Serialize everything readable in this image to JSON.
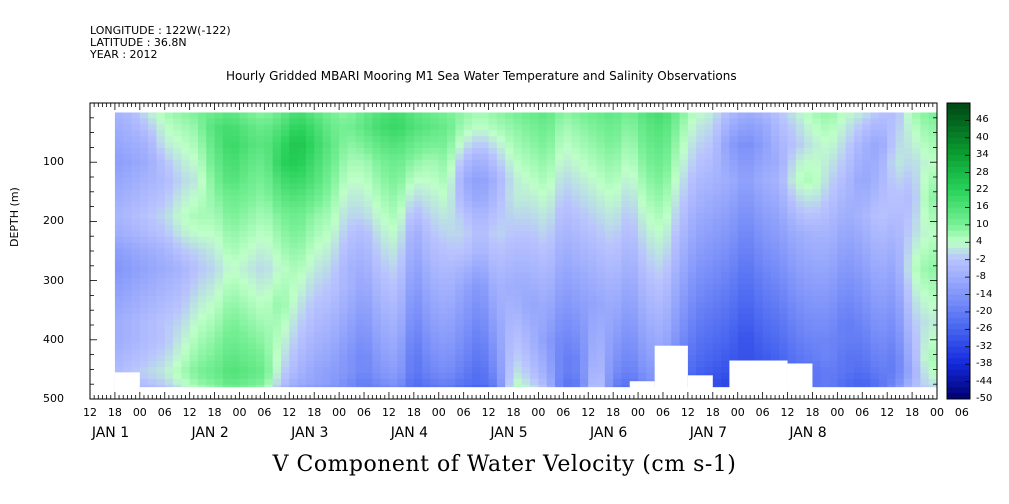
{
  "header": {
    "longitude": "LONGITUDE : 122W(-122)",
    "latitude": "LATITUDE : 36.8N",
    "year": "YEAR : 2012"
  },
  "chart_data": {
    "type": "heatmap",
    "title": "Hourly Gridded MBARI Mooring M1 Sea Water Temperature and Salinity Observations",
    "variable_title": "V Component of Water Velocity (cm s-1)",
    "ylabel": "DEPTH (m)",
    "xlabel": "",
    "y_axis": {
      "range": [
        500,
        0
      ],
      "inverted": true,
      "ticks": [
        100,
        200,
        300,
        400,
        500
      ]
    },
    "x_axis": {
      "range_hours": [
        0,
        204
      ],
      "hour_ticks": [
        "12",
        "18",
        "00",
        "06",
        "12",
        "18",
        "00",
        "06",
        "12",
        "18",
        "00",
        "06",
        "12",
        "18",
        "00",
        "06",
        "12",
        "18",
        "00",
        "06",
        "12",
        "18",
        "00",
        "06",
        "12",
        "18",
        "00",
        "06",
        "12",
        "18",
        "00",
        "06",
        "12",
        "18",
        "00",
        "06"
      ],
      "day_labels": [
        "JAN  1",
        "JAN  2",
        "JAN  3",
        "JAN  4",
        "JAN  5",
        "JAN  6",
        "JAN  7",
        "JAN  8"
      ]
    },
    "colorbar": {
      "levels": [
        46,
        40,
        34,
        28,
        22,
        16,
        10,
        4,
        -2,
        -8,
        -14,
        -20,
        -26,
        -32,
        -38,
        -44,
        -50
      ],
      "min": -50,
      "max": 52
    },
    "time_start": "2011-12-31 12:00",
    "data_columns": [
      {
        "t": 6,
        "v": [
          -6,
          -8,
          -10,
          -12,
          -10,
          -8,
          -6,
          -8,
          -12,
          -14,
          -12,
          -10,
          -8,
          -8,
          -6,
          -4,
          -6,
          -8
        ]
      },
      {
        "t": 10,
        "v": [
          -4,
          -6,
          -8,
          -10,
          -8,
          -6,
          -4,
          -6,
          -10,
          -12,
          -10,
          -8,
          -6,
          -6,
          -4,
          -2,
          -4,
          -6
        ]
      },
      {
        "t": 14,
        "v": [
          2,
          -2,
          -6,
          -8,
          -6,
          -4,
          -2,
          -4,
          -8,
          -10,
          -8,
          -6,
          -4,
          -4,
          -2,
          0,
          -2,
          -4
        ]
      },
      {
        "t": 18,
        "v": [
          6,
          4,
          2,
          -2,
          -4,
          -2,
          0,
          -2,
          -6,
          -8,
          -6,
          -4,
          -2,
          -2,
          0,
          2,
          0,
          -2
        ]
      },
      {
        "t": 22,
        "v": [
          8,
          6,
          4,
          2,
          0,
          2,
          4,
          2,
          -2,
          -6,
          -4,
          -2,
          0,
          2,
          4,
          6,
          4,
          2
        ]
      },
      {
        "t": 26,
        "v": [
          10,
          8,
          6,
          4,
          2,
          4,
          6,
          4,
          0,
          -2,
          0,
          2,
          4,
          6,
          8,
          10,
          8,
          6
        ]
      },
      {
        "t": 30,
        "v": [
          12,
          16,
          14,
          12,
          10,
          8,
          6,
          4,
          2,
          0,
          2,
          4,
          6,
          8,
          10,
          12,
          10,
          8
        ]
      },
      {
        "t": 34,
        "v": [
          14,
          18,
          20,
          18,
          16,
          12,
          10,
          8,
          6,
          4,
          6,
          8,
          10,
          12,
          14,
          16,
          14,
          12
        ]
      },
      {
        "t": 38,
        "v": [
          10,
          14,
          16,
          14,
          12,
          10,
          8,
          6,
          4,
          2,
          4,
          6,
          8,
          10,
          12,
          14,
          12,
          10
        ]
      },
      {
        "t": 42,
        "v": [
          8,
          12,
          14,
          12,
          10,
          8,
          6,
          4,
          2,
          0,
          2,
          4,
          6,
          8,
          10,
          12,
          10,
          8
        ]
      },
      {
        "t": 46,
        "v": [
          12,
          16,
          20,
          22,
          18,
          14,
          10,
          8,
          6,
          4,
          6,
          8,
          6,
          4,
          2,
          0,
          -2,
          -4
        ]
      },
      {
        "t": 50,
        "v": [
          18,
          22,
          26,
          24,
          20,
          16,
          12,
          10,
          8,
          6,
          4,
          2,
          0,
          -2,
          -4,
          -6,
          -8,
          -10
        ]
      },
      {
        "t": 54,
        "v": [
          14,
          18,
          20,
          18,
          16,
          12,
          8,
          6,
          4,
          2,
          0,
          -2,
          -4,
          -6,
          -8,
          -10,
          -10,
          -12
        ]
      },
      {
        "t": 58,
        "v": [
          10,
          12,
          14,
          12,
          10,
          8,
          6,
          4,
          2,
          0,
          -2,
          -4,
          -6,
          -8,
          -10,
          -12,
          -12,
          -14
        ]
      },
      {
        "t": 62,
        "v": [
          8,
          10,
          8,
          6,
          4,
          2,
          0,
          -2,
          -4,
          -6,
          -6,
          -8,
          -10,
          -12,
          -14,
          -14,
          -16,
          -16
        ]
      },
      {
        "t": 66,
        "v": [
          12,
          14,
          10,
          6,
          4,
          2,
          0,
          -4,
          -6,
          -8,
          -10,
          -12,
          -14,
          -16,
          -18,
          -18,
          -20,
          -20
        ]
      },
      {
        "t": 70,
        "v": [
          16,
          18,
          14,
          10,
          8,
          6,
          4,
          2,
          0,
          -2,
          -4,
          -6,
          -8,
          -10,
          -12,
          -14,
          -16,
          -18
        ]
      },
      {
        "t": 74,
        "v": [
          18,
          20,
          16,
          12,
          10,
          8,
          6,
          4,
          2,
          0,
          -2,
          -4,
          -6,
          -8,
          -10,
          -12,
          -14,
          -16
        ]
      },
      {
        "t": 78,
        "v": [
          14,
          16,
          12,
          8,
          4,
          0,
          -4,
          -8,
          -10,
          -12,
          -14,
          -16,
          -18,
          -20,
          -22,
          -22,
          -24,
          -24
        ]
      },
      {
        "t": 82,
        "v": [
          12,
          14,
          10,
          6,
          4,
          2,
          0,
          -2,
          -4,
          -6,
          -8,
          -10,
          -12,
          -14,
          -16,
          -18,
          -20,
          -22
        ]
      },
      {
        "t": 86,
        "v": [
          10,
          12,
          10,
          8,
          6,
          4,
          2,
          0,
          -2,
          -4,
          -6,
          -8,
          -10,
          -12,
          -14,
          -16,
          -18,
          -20
        ]
      },
      {
        "t": 90,
        "v": [
          8,
          6,
          2,
          -4,
          -8,
          -6,
          -2,
          0,
          -2,
          -6,
          -10,
          -12,
          -14,
          -16,
          -18,
          -20,
          -22,
          -24
        ]
      },
      {
        "t": 94,
        "v": [
          6,
          4,
          -2,
          -8,
          -12,
          -10,
          -6,
          -4,
          -6,
          -10,
          -14,
          -16,
          -18,
          -20,
          -22,
          -24,
          -24,
          -26
        ]
      },
      {
        "t": 98,
        "v": [
          8,
          6,
          2,
          -2,
          -6,
          -4,
          -2,
          0,
          -2,
          -4,
          -6,
          -8,
          -10,
          -12,
          -14,
          -16,
          -18,
          -20
        ]
      },
      {
        "t": 102,
        "v": [
          10,
          8,
          6,
          4,
          2,
          2,
          0,
          -2,
          -4,
          -6,
          -8,
          -6,
          -4,
          -2,
          0,
          2,
          4,
          6
        ]
      },
      {
        "t": 106,
        "v": [
          12,
          10,
          8,
          6,
          4,
          2,
          0,
          -2,
          -4,
          -6,
          -8,
          -10,
          -8,
          -6,
          -4,
          -2,
          0,
          2
        ]
      },
      {
        "t": 110,
        "v": [
          14,
          12,
          10,
          8,
          6,
          4,
          2,
          0,
          -2,
          -4,
          -6,
          -8,
          -10,
          -12,
          -10,
          -8,
          -6,
          -4
        ]
      },
      {
        "t": 114,
        "v": [
          8,
          6,
          4,
          2,
          0,
          -2,
          -4,
          -6,
          -8,
          -10,
          -12,
          -14,
          -16,
          -18,
          -20,
          -20,
          -22,
          -22
        ]
      },
      {
        "t": 118,
        "v": [
          10,
          8,
          6,
          4,
          2,
          0,
          -2,
          -4,
          -6,
          -8,
          -10,
          -12,
          -14,
          -16,
          -18,
          -18,
          -20,
          -20
        ]
      },
      {
        "t": 122,
        "v": [
          12,
          10,
          8,
          6,
          4,
          2,
          0,
          -2,
          -4,
          -6,
          -8,
          -10,
          -8,
          -6,
          -4,
          -2,
          0,
          2
        ]
      },
      {
        "t": 126,
        "v": [
          14,
          12,
          10,
          8,
          6,
          4,
          2,
          0,
          -2,
          -4,
          -6,
          -8,
          -10,
          -12,
          -14,
          -16,
          -18,
          -20
        ]
      },
      {
        "t": 130,
        "v": [
          10,
          8,
          6,
          4,
          2,
          0,
          -2,
          -4,
          -6,
          -8,
          -10,
          -12,
          -14,
          -16,
          -18,
          -20,
          -22,
          -24
        ]
      },
      {
        "t": 134,
        "v": [
          16,
          14,
          12,
          10,
          8,
          6,
          4,
          2,
          0,
          -2,
          -4,
          -6,
          -8,
          -10,
          -12,
          -14,
          -16,
          -18
        ]
      },
      {
        "t": 138,
        "v": [
          18,
          16,
          14,
          12,
          10,
          8,
          6,
          4,
          2,
          0,
          -2,
          -4,
          -6,
          -8,
          -10,
          -12,
          -14,
          -16
        ]
      },
      {
        "t": 142,
        "v": [
          10,
          8,
          6,
          4,
          2,
          0,
          -2,
          -4,
          -6,
          -8,
          -10,
          -12,
          -14,
          -16,
          -18,
          -20,
          -22,
          -24
        ]
      },
      {
        "t": 146,
        "v": [
          4,
          2,
          0,
          -2,
          -4,
          -6,
          -8,
          -10,
          -12,
          -14,
          -16,
          -18,
          -20,
          -22,
          -24,
          -26,
          -28,
          -30
        ]
      },
      {
        "t": 150,
        "v": [
          2,
          0,
          -2,
          -4,
          -6,
          -8,
          -10,
          -12,
          -14,
          -16,
          -18,
          -20,
          -22,
          -24,
          -26,
          -28,
          -30,
          -30
        ]
      },
      {
        "t": 154,
        "v": [
          -4,
          -8,
          -12,
          -10,
          -8,
          -10,
          -12,
          -14,
          -16,
          -18,
          -20,
          -22,
          -24,
          -26,
          -28,
          -30,
          -32,
          -32
        ]
      },
      {
        "t": 158,
        "v": [
          -8,
          -12,
          -16,
          -14,
          -12,
          -14,
          -16,
          -18,
          -20,
          -22,
          -24,
          -26,
          -28,
          -30,
          -30,
          -32,
          -34,
          -34
        ]
      },
      {
        "t": 162,
        "v": [
          -6,
          -10,
          -12,
          -10,
          -8,
          -10,
          -12,
          -14,
          -16,
          -18,
          -20,
          -22,
          -24,
          -26,
          -28,
          -30,
          -30,
          -30
        ]
      },
      {
        "t": 166,
        "v": [
          -2,
          -4,
          -6,
          -8,
          -6,
          -8,
          -10,
          -12,
          -14,
          -16,
          -18,
          -20,
          -22,
          -24,
          -26,
          -28,
          -28,
          -28
        ]
      },
      {
        "t": 170,
        "v": [
          2,
          0,
          -2,
          2,
          4,
          0,
          -4,
          -8,
          -10,
          -12,
          -14,
          -16,
          -18,
          -20,
          -22,
          -24,
          -24,
          -24
        ]
      },
      {
        "t": 174,
        "v": [
          6,
          4,
          2,
          4,
          6,
          2,
          -2,
          -6,
          -8,
          -10,
          -12,
          -14,
          -16,
          -18,
          -20,
          -22,
          -22,
          -22
        ]
      },
      {
        "t": 178,
        "v": [
          8,
          6,
          4,
          2,
          0,
          -2,
          -4,
          -6,
          -8,
          -10,
          -12,
          -14,
          -16,
          -18,
          -18,
          -20,
          -20,
          -20
        ]
      },
      {
        "t": 182,
        "v": [
          4,
          2,
          0,
          -2,
          -4,
          -6,
          -8,
          -10,
          -12,
          -14,
          -16,
          -18,
          -20,
          -20,
          -22,
          -22,
          -24,
          -24
        ]
      },
      {
        "t": 186,
        "v": [
          2,
          -2,
          -6,
          -8,
          -10,
          -8,
          -6,
          -8,
          -10,
          -12,
          -14,
          -16,
          -18,
          -20,
          -22,
          -24,
          -26,
          -26
        ]
      },
      {
        "t": 190,
        "v": [
          -2,
          -6,
          -10,
          -8,
          -6,
          -4,
          -2,
          -4,
          -6,
          -8,
          -10,
          -12,
          -14,
          -16,
          -18,
          -20,
          -22,
          -22
        ]
      },
      {
        "t": 194,
        "v": [
          -4,
          -2,
          0,
          2,
          0,
          -2,
          -4,
          -6,
          -8,
          -10,
          -12,
          -14,
          -16,
          -18,
          -20,
          -20,
          -18,
          -16
        ]
      },
      {
        "t": 198,
        "v": [
          6,
          4,
          2,
          0,
          -2,
          -4,
          -2,
          0,
          2,
          4,
          2,
          0,
          -2,
          -4,
          -6,
          -8,
          -6,
          -4
        ]
      },
      {
        "t": 202,
        "v": [
          10,
          8,
          6,
          4,
          6,
          8,
          6,
          4,
          6,
          8,
          6,
          4,
          2,
          4,
          6,
          4,
          2,
          0
        ]
      }
    ],
    "data_depths": [
      16,
      40,
      70,
      100,
      130,
      160,
      190,
      220,
      250,
      280,
      310,
      340,
      370,
      400,
      430,
      455,
      470,
      480
    ],
    "missing_regions": [
      {
        "t0": 0,
        "t1": 6,
        "d0": 0,
        "d1": 500
      },
      {
        "t0": 6,
        "t1": 12,
        "d0": 455,
        "d1": 500
      },
      {
        "t0": 12,
        "t1": 204,
        "d0": 480,
        "d1": 500
      },
      {
        "t0": 130,
        "t1": 136,
        "d0": 470,
        "d1": 500
      },
      {
        "t0": 136,
        "t1": 144,
        "d0": 410,
        "d1": 500
      },
      {
        "t0": 144,
        "t1": 150,
        "d0": 460,
        "d1": 500
      },
      {
        "t0": 154,
        "t1": 168,
        "d0": 435,
        "d1": 500
      },
      {
        "t0": 168,
        "t1": 174,
        "d0": 440,
        "d1": 500
      }
    ]
  }
}
